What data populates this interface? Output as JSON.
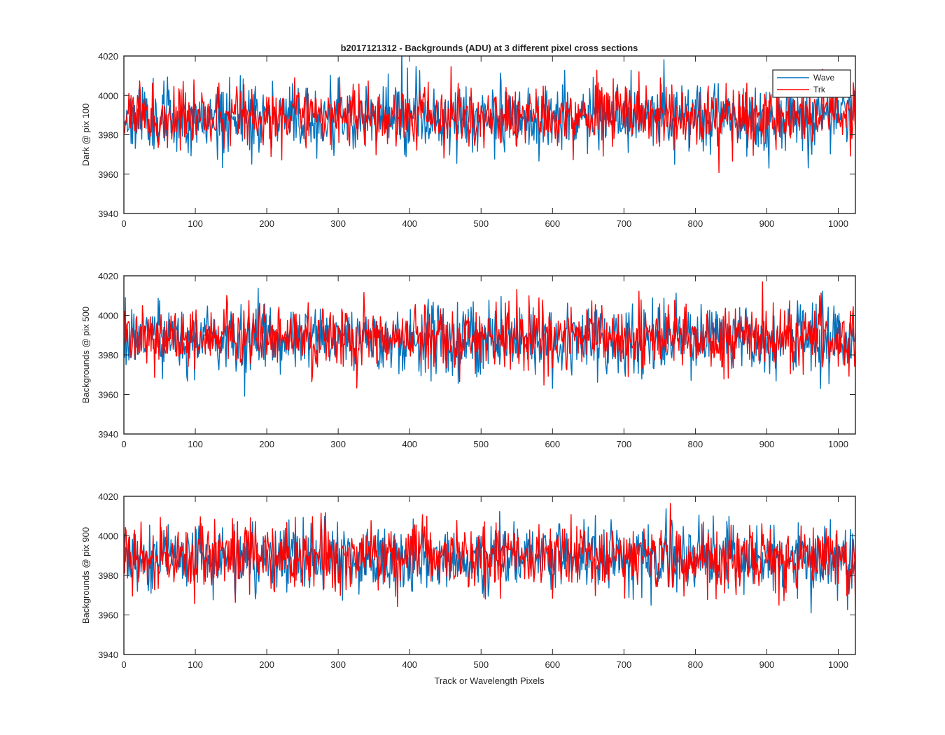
{
  "figure": {
    "title": "b2017121312 - Backgrounds (ADU) at 3 different pixel cross sections",
    "xlabel": "Track or Wavelength Pixels"
  },
  "legend": {
    "placement": "top-right",
    "entries": [
      {
        "label": "Wave",
        "color": "#0072BD"
      },
      {
        "label": "Trk",
        "color": "#FF0000"
      }
    ]
  },
  "chart_data": [
    {
      "type": "line",
      "ylabel": "Dark @ pix 100",
      "xlim": [
        0,
        1024
      ],
      "ylim": [
        3940,
        4020
      ],
      "xticks": [
        0,
        100,
        200,
        300,
        400,
        500,
        600,
        700,
        800,
        900,
        1000
      ],
      "yticks": [
        3940,
        3960,
        3980,
        4000,
        4020
      ],
      "n_points": 1024,
      "series": [
        {
          "name": "Wave",
          "color": "#0072BD",
          "mean": 3989,
          "std": 8.5,
          "seed": 11
        },
        {
          "name": "Trk",
          "color": "#FF0000",
          "mean": 3989,
          "std": 7.5,
          "seed": 23
        }
      ]
    },
    {
      "type": "line",
      "ylabel": "Backgrounds @ pix 500",
      "xlim": [
        0,
        1024
      ],
      "ylim": [
        3940,
        4020
      ],
      "xticks": [
        0,
        100,
        200,
        300,
        400,
        500,
        600,
        700,
        800,
        900,
        1000
      ],
      "yticks": [
        3940,
        3960,
        3980,
        4000,
        4020
      ],
      "n_points": 1024,
      "series": [
        {
          "name": "Wave",
          "color": "#0072BD",
          "mean": 3988,
          "std": 8.5,
          "seed": 37
        },
        {
          "name": "Trk",
          "color": "#FF0000",
          "mean": 3989,
          "std": 8.0,
          "seed": 41
        }
      ]
    },
    {
      "type": "line",
      "ylabel": "Backgrounds @ pix 900",
      "xlim": [
        0,
        1024
      ],
      "ylim": [
        3940,
        4020
      ],
      "xticks": [
        0,
        100,
        200,
        300,
        400,
        500,
        600,
        700,
        800,
        900,
        1000
      ],
      "yticks": [
        3940,
        3960,
        3980,
        4000,
        4020
      ],
      "n_points": 1024,
      "series": [
        {
          "name": "Wave",
          "color": "#0072BD",
          "mean": 3989,
          "std": 8.5,
          "seed": 53
        },
        {
          "name": "Trk",
          "color": "#FF0000",
          "mean": 3989,
          "std": 8.0,
          "seed": 67
        }
      ]
    }
  ]
}
